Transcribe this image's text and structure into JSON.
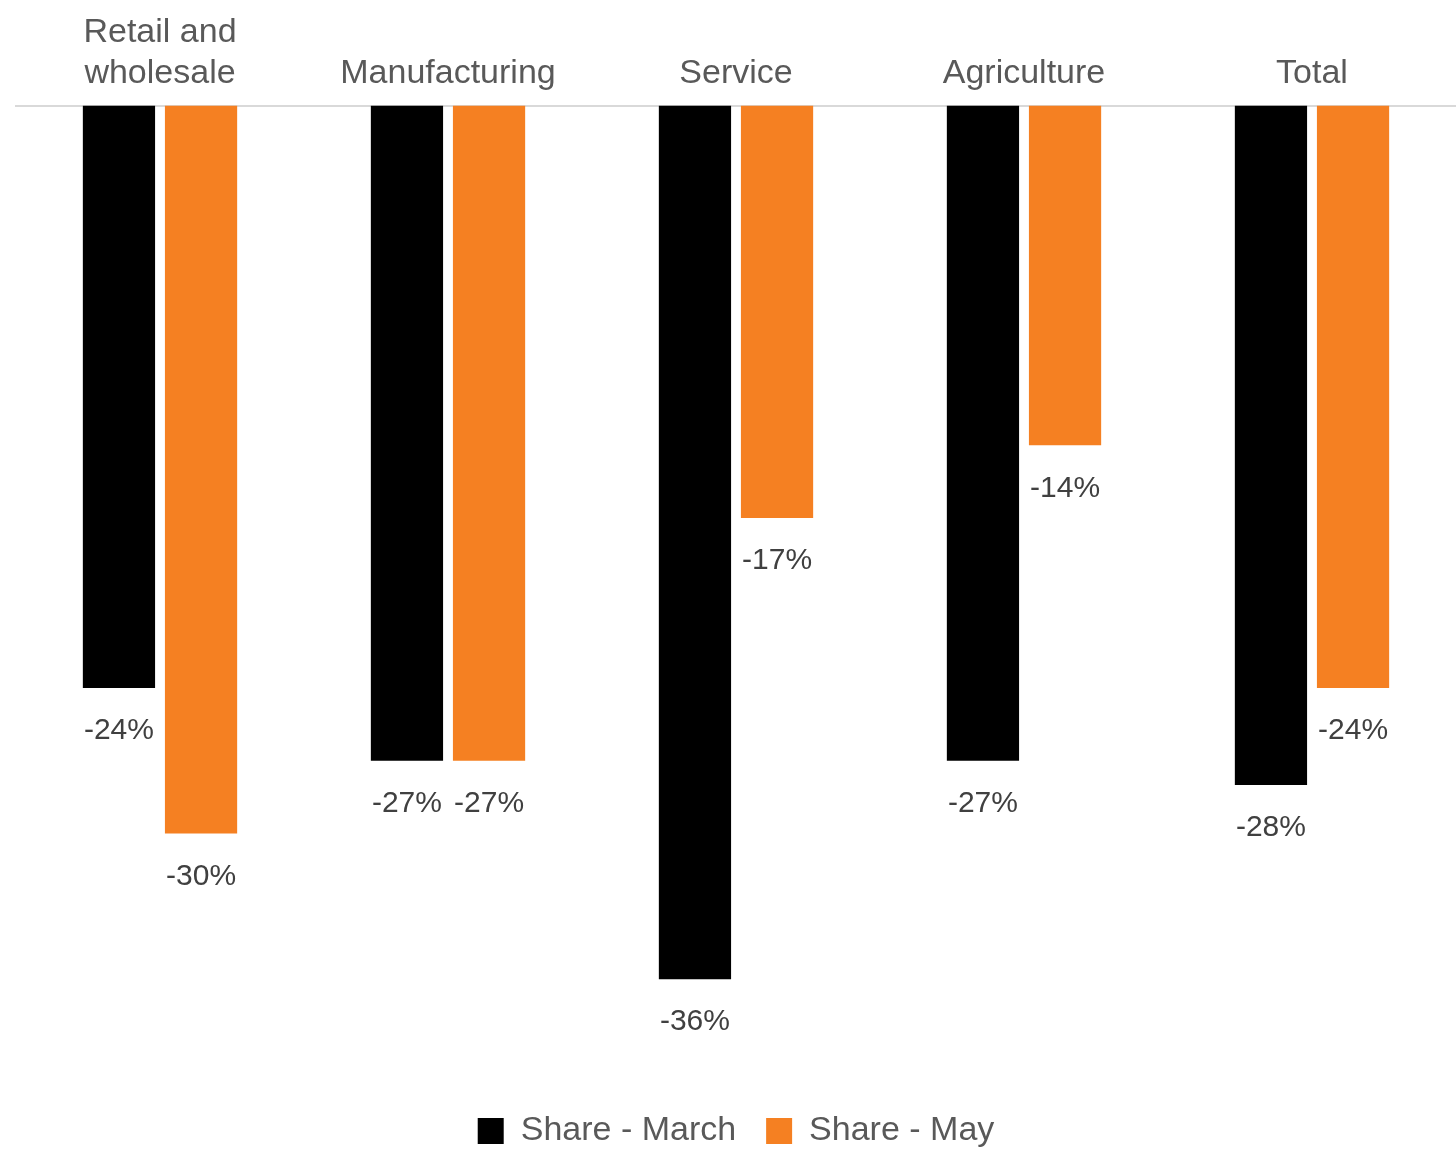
{
  "chart_data": {
    "type": "bar",
    "categories": [
      "Retail and wholesale",
      "Manufacturing",
      "Service",
      "Agriculture",
      "Total"
    ],
    "series": [
      {
        "name": "Share - March",
        "color": "#000000",
        "values": [
          -24,
          -27,
          -36,
          -27,
          -28
        ],
        "value_labels": [
          "-24%",
          "-27%",
          "-36%",
          "-27%",
          "-28%"
        ]
      },
      {
        "name": "Share - May",
        "color": "#f58022",
        "values": [
          -30,
          -27,
          -17,
          -14,
          -24
        ],
        "value_labels": [
          "-30%",
          "-27%",
          "-17%",
          "-14%",
          "-24%"
        ]
      }
    ],
    "legend": "bottom"
  }
}
